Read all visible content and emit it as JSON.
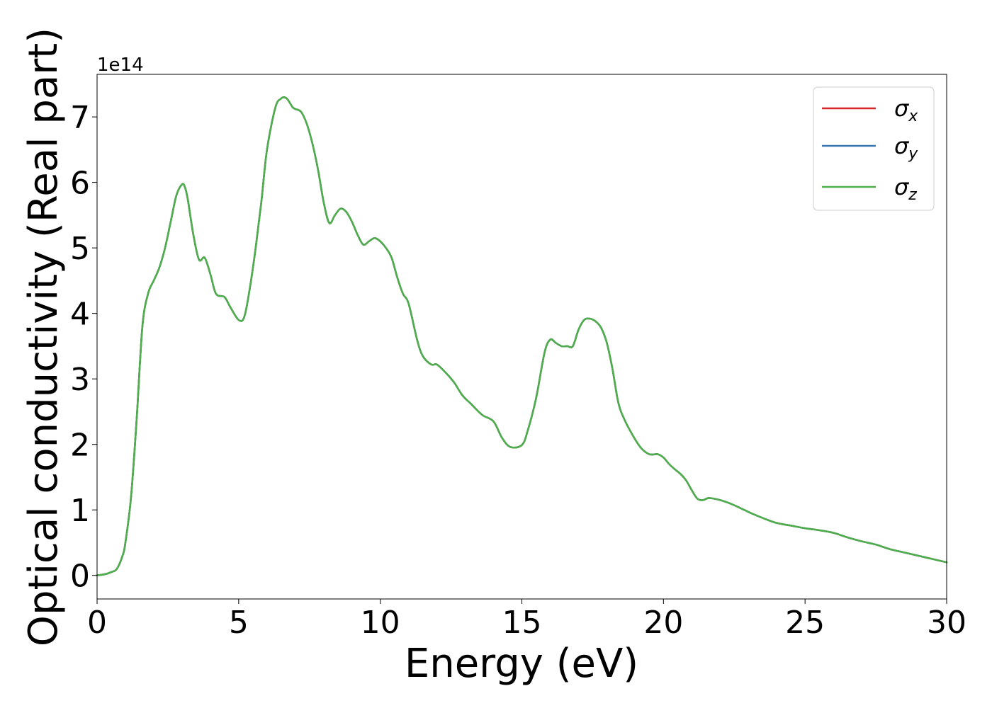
{
  "chart_data": {
    "type": "line",
    "xlabel": "Energy (eV)",
    "ylabel": "Optical conductivity (Real part)",
    "y_multiplier": "1e14",
    "xlim": [
      0,
      30
    ],
    "ylim": [
      -0.36,
      7.65
    ],
    "xticks": [
      0,
      5,
      10,
      15,
      20,
      25,
      30
    ],
    "yticks": [
      0,
      1,
      2,
      3,
      4,
      5,
      6,
      7
    ],
    "grid": false,
    "legend_placement": "top-right",
    "legend": [
      {
        "symbol": "σ",
        "subscript": "x",
        "color": "#d62728"
      },
      {
        "symbol": "σ",
        "subscript": "y",
        "color": "#3a78b4"
      },
      {
        "symbol": "σ",
        "subscript": "z",
        "color": "#4daf4a"
      }
    ],
    "x": [
      0,
      0.3,
      0.5,
      0.7,
      0.9,
      1.0,
      1.2,
      1.4,
      1.6,
      1.8,
      2.0,
      2.2,
      2.4,
      2.6,
      2.8,
      3.0,
      3.1,
      3.2,
      3.4,
      3.6,
      3.8,
      4.0,
      4.2,
      4.5,
      4.7,
      5.0,
      5.2,
      5.4,
      5.6,
      5.8,
      6.0,
      6.3,
      6.5,
      6.6,
      6.7,
      6.8,
      6.9,
      7.0,
      7.2,
      7.4,
      7.6,
      7.8,
      8.0,
      8.2,
      8.4,
      8.6,
      8.8,
      9.0,
      9.2,
      9.4,
      9.6,
      9.8,
      10.0,
      10.2,
      10.4,
      10.6,
      10.8,
      11.0,
      11.3,
      11.5,
      11.8,
      12.0,
      12.3,
      12.6,
      12.9,
      13.2,
      13.6,
      14.0,
      14.3,
      14.6,
      15.0,
      15.2,
      15.5,
      15.8,
      16.0,
      16.2,
      16.4,
      16.6,
      16.8,
      17.0,
      17.2,
      17.4,
      17.6,
      17.8,
      18.0,
      18.2,
      18.4,
      18.6,
      18.9,
      19.2,
      19.5,
      19.8,
      20.0,
      20.2,
      20.4,
      20.6,
      20.8,
      21.0,
      21.2,
      21.4,
      21.6,
      22.0,
      22.4,
      22.8,
      23.2,
      23.6,
      24.0,
      24.5,
      25.0,
      25.5,
      26.0,
      26.5,
      27.0,
      27.5,
      28.0,
      28.5,
      29.0,
      29.5,
      30.0
    ],
    "series": [
      {
        "name": "σx",
        "color": "#d62728",
        "values": [
          0.0,
          0.02,
          0.05,
          0.1,
          0.3,
          0.5,
          1.2,
          2.4,
          3.8,
          4.3,
          4.5,
          4.7,
          5.0,
          5.4,
          5.8,
          5.97,
          5.93,
          5.75,
          5.2,
          4.82,
          4.85,
          4.6,
          4.3,
          4.25,
          4.1,
          3.9,
          3.95,
          4.4,
          5.0,
          5.7,
          6.5,
          7.15,
          7.28,
          7.3,
          7.28,
          7.22,
          7.15,
          7.12,
          7.08,
          6.9,
          6.6,
          6.2,
          5.7,
          5.38,
          5.5,
          5.6,
          5.55,
          5.4,
          5.2,
          5.05,
          5.1,
          5.15,
          5.1,
          5.0,
          4.85,
          4.55,
          4.3,
          4.15,
          3.6,
          3.35,
          3.22,
          3.22,
          3.1,
          2.95,
          2.75,
          2.62,
          2.45,
          2.35,
          2.1,
          1.96,
          1.99,
          2.2,
          2.7,
          3.4,
          3.6,
          3.55,
          3.5,
          3.5,
          3.5,
          3.75,
          3.9,
          3.92,
          3.88,
          3.78,
          3.55,
          3.15,
          2.65,
          2.4,
          2.15,
          1.95,
          1.85,
          1.85,
          1.8,
          1.7,
          1.62,
          1.55,
          1.45,
          1.3,
          1.17,
          1.15,
          1.18,
          1.15,
          1.09,
          1.01,
          0.93,
          0.86,
          0.8,
          0.76,
          0.72,
          0.69,
          0.65,
          0.58,
          0.52,
          0.47,
          0.4,
          0.35,
          0.3,
          0.25,
          0.2
        ]
      },
      {
        "name": "σy",
        "color": "#3a78b4",
        "values": [
          0.0,
          0.02,
          0.05,
          0.1,
          0.3,
          0.5,
          1.2,
          2.4,
          3.8,
          4.3,
          4.5,
          4.7,
          5.0,
          5.4,
          5.8,
          5.97,
          5.93,
          5.75,
          5.2,
          4.82,
          4.85,
          4.6,
          4.3,
          4.25,
          4.1,
          3.9,
          3.95,
          4.4,
          5.0,
          5.7,
          6.5,
          7.15,
          7.28,
          7.3,
          7.28,
          7.22,
          7.15,
          7.12,
          7.08,
          6.9,
          6.6,
          6.2,
          5.7,
          5.38,
          5.5,
          5.6,
          5.55,
          5.4,
          5.2,
          5.05,
          5.1,
          5.15,
          5.1,
          5.0,
          4.85,
          4.55,
          4.3,
          4.15,
          3.6,
          3.35,
          3.22,
          3.22,
          3.1,
          2.95,
          2.75,
          2.62,
          2.45,
          2.35,
          2.1,
          1.96,
          1.99,
          2.2,
          2.7,
          3.4,
          3.6,
          3.55,
          3.5,
          3.5,
          3.5,
          3.75,
          3.9,
          3.92,
          3.88,
          3.78,
          3.55,
          3.15,
          2.65,
          2.4,
          2.15,
          1.95,
          1.85,
          1.85,
          1.8,
          1.7,
          1.62,
          1.55,
          1.45,
          1.3,
          1.17,
          1.15,
          1.18,
          1.15,
          1.09,
          1.01,
          0.93,
          0.86,
          0.8,
          0.76,
          0.72,
          0.69,
          0.65,
          0.58,
          0.52,
          0.47,
          0.4,
          0.35,
          0.3,
          0.25,
          0.2
        ]
      },
      {
        "name": "σz",
        "color": "#4daf4a",
        "values": [
          0.0,
          0.02,
          0.05,
          0.1,
          0.3,
          0.5,
          1.2,
          2.4,
          3.8,
          4.3,
          4.5,
          4.7,
          5.0,
          5.4,
          5.8,
          5.97,
          5.93,
          5.75,
          5.2,
          4.82,
          4.85,
          4.6,
          4.3,
          4.25,
          4.1,
          3.9,
          3.95,
          4.4,
          5.0,
          5.7,
          6.5,
          7.15,
          7.28,
          7.3,
          7.28,
          7.22,
          7.15,
          7.12,
          7.08,
          6.9,
          6.6,
          6.2,
          5.7,
          5.38,
          5.5,
          5.6,
          5.55,
          5.4,
          5.2,
          5.05,
          5.1,
          5.15,
          5.1,
          5.0,
          4.85,
          4.55,
          4.3,
          4.15,
          3.6,
          3.35,
          3.22,
          3.22,
          3.1,
          2.95,
          2.75,
          2.62,
          2.45,
          2.35,
          2.1,
          1.96,
          1.99,
          2.2,
          2.7,
          3.4,
          3.6,
          3.55,
          3.5,
          3.5,
          3.5,
          3.75,
          3.9,
          3.92,
          3.88,
          3.78,
          3.55,
          3.15,
          2.65,
          2.4,
          2.15,
          1.95,
          1.85,
          1.85,
          1.8,
          1.7,
          1.62,
          1.55,
          1.45,
          1.3,
          1.17,
          1.15,
          1.18,
          1.15,
          1.09,
          1.01,
          0.93,
          0.86,
          0.8,
          0.76,
          0.72,
          0.69,
          0.65,
          0.58,
          0.52,
          0.47,
          0.4,
          0.35,
          0.3,
          0.25,
          0.2
        ]
      }
    ]
  }
}
